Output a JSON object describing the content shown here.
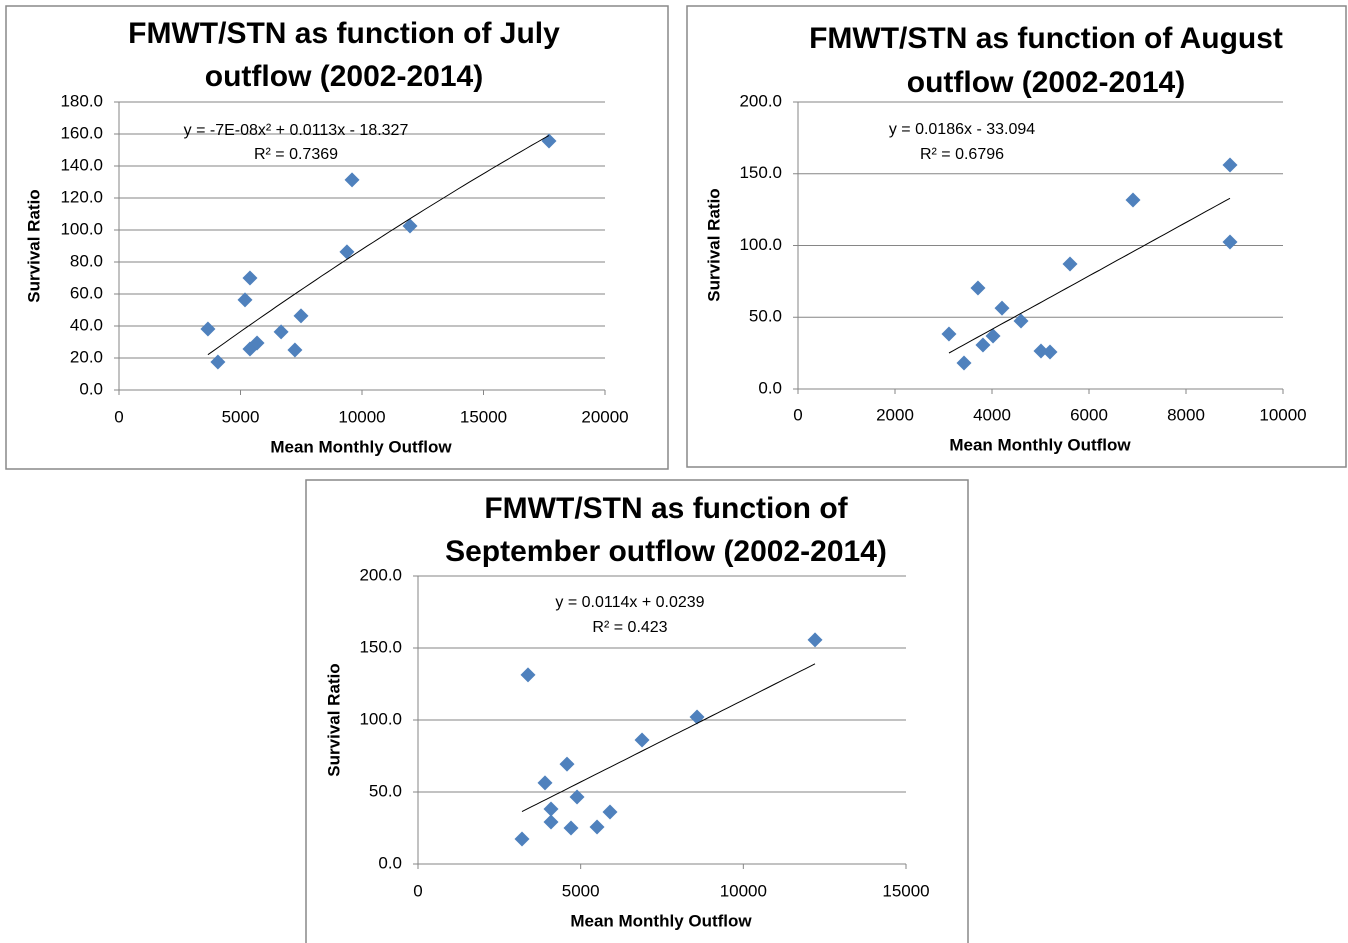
{
  "chart_data": [
    {
      "type": "scatter",
      "title": [
        "FMWT/STN as function of July",
        "outflow (2002-2014)"
      ],
      "x_label": "Mean Monthly Outflow",
      "y_label": "Survival Ratio",
      "annotations": [
        "y = -7E-08x² + 0.0113x - 18.327",
        "R² = 0.7369"
      ],
      "trendline": "polynomial",
      "color": "#4f81bd",
      "grid": true,
      "x": [
        3660,
        4070,
        5185,
        5390,
        5390,
        5680,
        6670,
        7240,
        7490,
        9380,
        9590,
        11975,
        17695
      ],
      "values": [
        38.1,
        17.5,
        56.3,
        70,
        25.6,
        29.4,
        36.3,
        25,
        46.3,
        86.3,
        131.3,
        102.5,
        155.6
      ],
      "xlim": [
        0,
        20000
      ],
      "xticks": [
        0,
        5000,
        10000,
        15000,
        20000
      ],
      "ylim": [
        0,
        180
      ],
      "yticks": [
        {
          "value": 0,
          "label": "0.0"
        },
        {
          "value": 20,
          "label": "20.0"
        },
        {
          "value": 40,
          "label": "40.0"
        },
        {
          "value": 60,
          "label": "60.0"
        },
        {
          "value": 80,
          "label": "80.0"
        },
        {
          "value": 100,
          "label": "100.0"
        },
        {
          "value": 120,
          "label": "120.0"
        },
        {
          "value": 140,
          "label": "140.0"
        },
        {
          "value": 160,
          "label": "160.0"
        },
        {
          "value": 180,
          "label": "180.0"
        }
      ]
    },
    {
      "type": "scatter",
      "title": [
        "FMWT/STN as function of August",
        "outflow (2002-2014)"
      ],
      "x_label": "Mean Monthly Outflow",
      "y_label": "Survival Ratio",
      "annotations": [
        "y = 0.0186x - 33.094",
        "R² = 0.6796"
      ],
      "trendline": "linear",
      "color": "#4f81bd",
      "grid": true,
      "x": [
        3113,
        3423,
        3711,
        3814,
        4021,
        4206,
        4598,
        5010,
        5196,
        5608,
        6907,
        8907,
        8907
      ],
      "values": [
        38.3,
        18.1,
        70.4,
        30.7,
        36.9,
        56.4,
        47.4,
        26.5,
        25.8,
        87.1,
        131.7,
        156.1,
        102.4
      ],
      "xlim": [
        0,
        10000
      ],
      "xticks": [
        0,
        2000,
        4000,
        6000,
        8000,
        10000
      ],
      "ylim": [
        0,
        200
      ],
      "yticks": [
        {
          "value": 0,
          "label": "0.0"
        },
        {
          "value": 50,
          "label": "50.0"
        },
        {
          "value": 100,
          "label": "100.0"
        },
        {
          "value": 150,
          "label": "150.0"
        },
        {
          "value": 200,
          "label": "200.0"
        }
      ]
    },
    {
      "type": "scatter",
      "title": [
        "FMWT/STN as function of",
        "September outflow (2002-2014)"
      ],
      "x_label": "Mean Monthly Outflow",
      "y_label": "Survival Ratio",
      "annotations": [
        "y = 0.0114x + 0.0239",
        "R² = 0.423"
      ],
      "trendline": "linear",
      "color": "#4f81bd",
      "grid": true,
      "x": [
        3197,
        3381,
        3904,
        4088,
        4088,
        4580,
        4703,
        4888,
        5503,
        5902,
        6886,
        8577,
        12204
      ],
      "values": [
        17.4,
        131.3,
        56.3,
        38.2,
        29.2,
        69.4,
        25,
        46.5,
        25.7,
        36.1,
        86.1,
        102.1,
        155.6
      ],
      "xlim": [
        0,
        15000
      ],
      "xticks": [
        0,
        5000,
        10000,
        15000
      ],
      "ylim": [
        0,
        200
      ],
      "yticks": [
        {
          "value": 0,
          "label": "0.0"
        },
        {
          "value": 50,
          "label": "50.0"
        },
        {
          "value": 100,
          "label": "100.0"
        },
        {
          "value": 150,
          "label": "150.0"
        },
        {
          "value": 200,
          "label": "200.0"
        }
      ]
    }
  ]
}
